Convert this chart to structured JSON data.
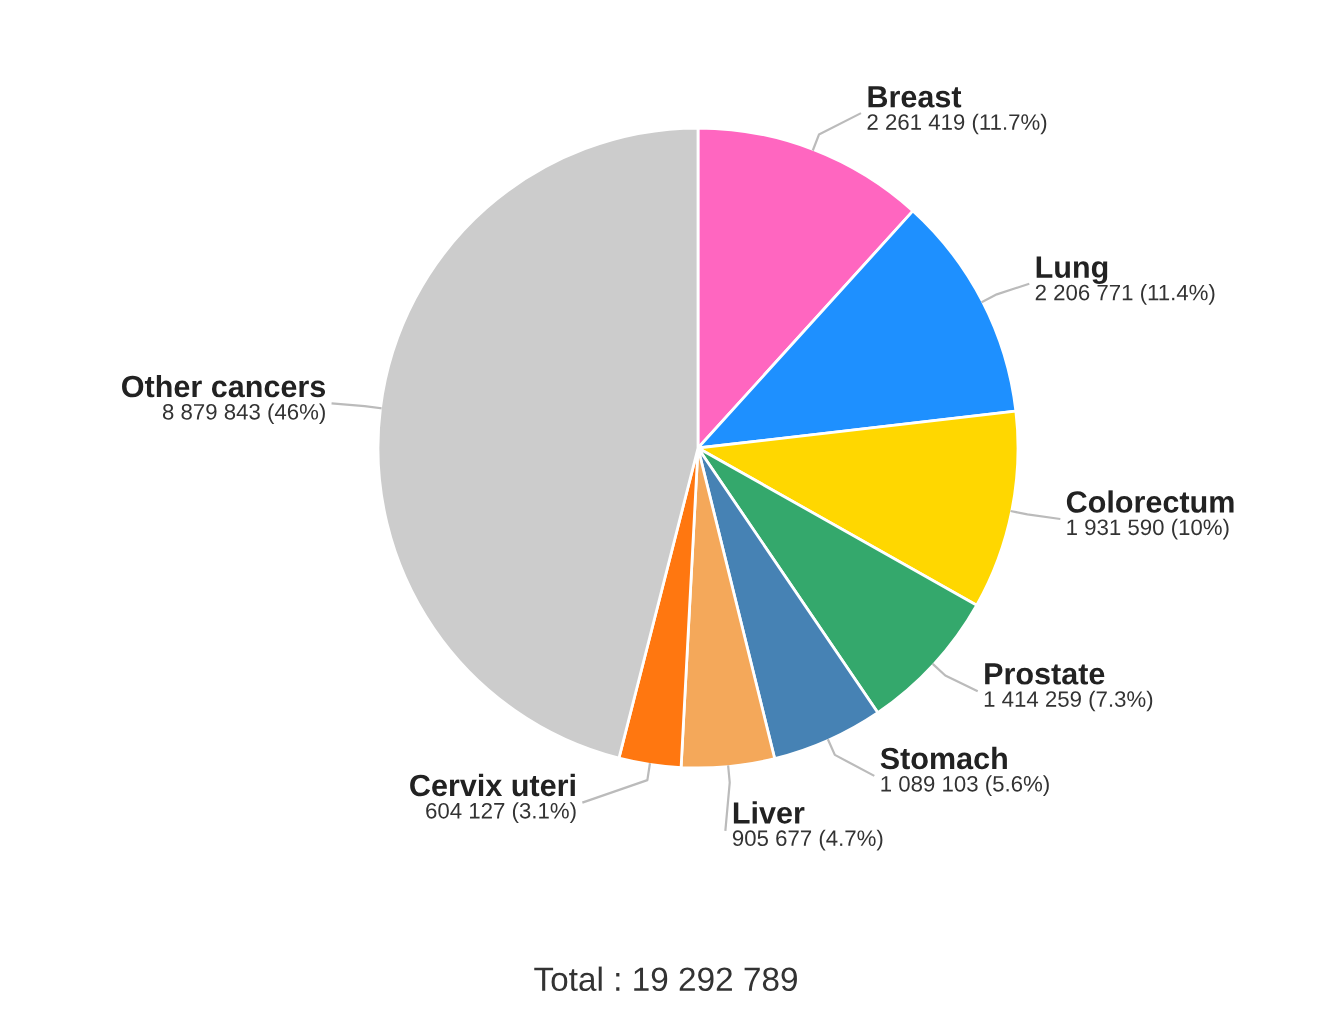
{
  "chart_data": {
    "type": "pie",
    "categories": [
      "Breast",
      "Lung",
      "Colorectum",
      "Prostate",
      "Stomach",
      "Liver",
      "Cervix uteri",
      "Other cancers"
    ],
    "values": [
      2261419,
      2206771,
      1931590,
      1414259,
      1089103,
      905677,
      604127,
      8879843
    ],
    "colors": [
      "#ff66c0",
      "#1e90ff",
      "#ffd700",
      "#34a86c",
      "#4682b4",
      "#f4a85a",
      "#ff7710",
      "#cccccc"
    ],
    "value_labels": [
      "2 261 419 (11.7%)",
      "2 206 771 (11.4%)",
      "1 931 590 (10%)",
      "1 414 259 (7.3%)",
      "1 089 103 (5.6%)",
      "905 677 (4.7%)",
      "604 127 (3.1%)",
      "8 879 843 (46%)"
    ],
    "annotations": [
      "Total : 19 292 789"
    ]
  }
}
